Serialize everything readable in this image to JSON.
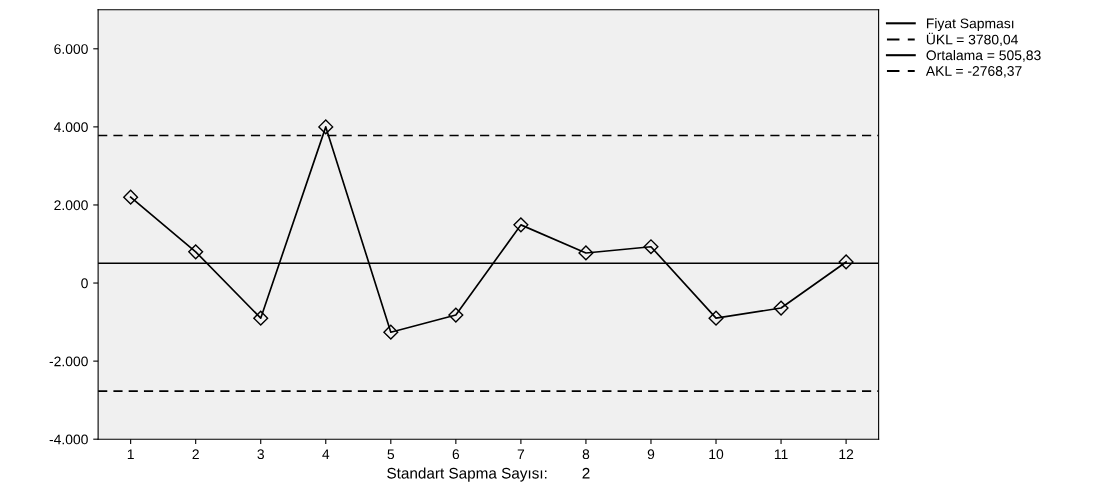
{
  "chart_data": {
    "type": "line",
    "xlabel": "Standart Sapma Sayısı:        2",
    "categories": [
      "1",
      "2",
      "3",
      "4",
      "5",
      "6",
      "7",
      "8",
      "9",
      "10",
      "11",
      "12"
    ],
    "series": [
      {
        "name": "Fiyat Sapması",
        "color": "#000000",
        "values": [
          2200,
          800,
          -900,
          4000,
          -1260,
          -820,
          1490,
          770,
          930,
          -900,
          -640,
          540
        ]
      }
    ],
    "marker": "diamond",
    "line_style": "solid",
    "ylim": [
      -4000,
      7000
    ],
    "yticks": [
      {
        "value": -4000,
        "label": "-4.000"
      },
      {
        "value": -2000,
        "label": "-2.000"
      },
      0,
      {
        "value": 2000,
        "label": "2.000"
      },
      {
        "value": 4000,
        "label": "4.000"
      },
      {
        "value": 6000,
        "label": "6.000"
      }
    ],
    "ref_lines": [
      {
        "axis": "y",
        "value": 3780.04,
        "label": "ÜKL = 3780,04",
        "line_style": "dashed",
        "color": "#000000"
      },
      {
        "axis": "y",
        "value": 505.83,
        "label": "Ortalama = 505,83",
        "line_style": "solid",
        "color": "#000000"
      },
      {
        "axis": "y",
        "value": -2768.37,
        "label": "AKL = -2768,37",
        "line_style": "dashed",
        "color": "#000000"
      }
    ],
    "grid": false,
    "legend": "top right"
  }
}
